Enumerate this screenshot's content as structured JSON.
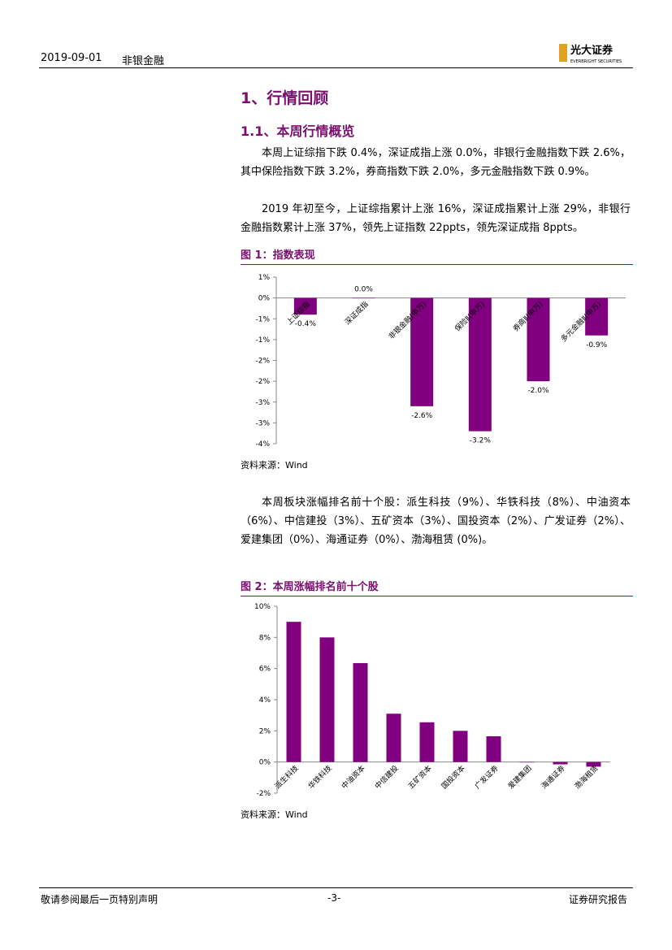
{
  "header": {
    "date": "2019-09-01",
    "sector": "非银金融",
    "logo": "光大证券",
    "logo_en": "EVERBRIGHT SECURITIES"
  },
  "heading1": "1、行情回顾",
  "heading2": "1.1、本周行情概览",
  "paragraphs": [
    "本周上证综指下跌 0.4%，深证成指上涨 0.0%，非银行金融指数下跌 2.6%，其中保险指数下跌 3.2%，券商指数下跌 2.0%，多元金融指数下跌 0.9%。",
    "2019 年初至今，上证综指累计上涨 16%，深证成指累计上涨 29%，非银行金融指数累计上涨 37%，领先上证指数 22ppts，领先深证成指 8ppts。",
    "本周板块涨幅排名前十个股：派生科技（9%）、华铁科技（8%）、中油资本（6%）、中信建投（3%）、五矿资本（3%）、国投资本（2%）、广发证券（2%）、爱建集团（0%）、海通证券（0%）、渤海租赁 (0%)。"
  ],
  "chart_data": [
    {
      "type": "bar",
      "title": "图 1：指数表现",
      "source": "资料来源：Wind",
      "color": "#800080",
      "categories": [
        "上证综指",
        "深证成指",
        "非银金融(申万)",
        "保险Ⅱ(申万)",
        "券商Ⅱ(申万)",
        "多元金融Ⅱ(申万)"
      ],
      "values": [
        -0.4,
        0.0,
        -2.6,
        -3.2,
        -2.0,
        -0.9
      ],
      "value_labels": [
        "-0.4%",
        "0.0%",
        "-2.6%",
        "-3.2%",
        "-2.0%",
        "-0.9%"
      ],
      "ylim": [
        -3.5,
        0.5
      ],
      "yticks": [
        {
          "value": 0.5,
          "label": "1%"
        },
        {
          "value": 0,
          "label": "0%"
        },
        {
          "value": -0.5,
          "label": "-1%"
        },
        {
          "value": -1.0,
          "label": "-1%"
        },
        {
          "value": -1.5,
          "label": "-2%"
        },
        {
          "value": -2.0,
          "label": "-2%"
        },
        {
          "value": -2.5,
          "label": "-3%"
        },
        {
          "value": -3.0,
          "label": "-3%"
        },
        {
          "value": -3.5,
          "label": "-4%"
        }
      ]
    },
    {
      "type": "bar",
      "title": "图 2：本周涨幅排名前十个股",
      "source": "资料来源：Wind",
      "color": "#800080",
      "categories": [
        "派生科技",
        "华铁科技",
        "中油资本",
        "中信建投",
        "五矿资本",
        "国投资本",
        "广发证券",
        "爱建集团",
        "海通证券",
        "渤海租赁"
      ],
      "values": [
        9.0,
        8.0,
        6.35,
        3.1,
        2.55,
        2.0,
        1.65,
        0.0,
        -0.15,
        -0.3
      ],
      "ylim": [
        -2,
        10
      ],
      "yticks": [
        {
          "value": 10,
          "label": "10%"
        },
        {
          "value": 8,
          "label": "8%"
        },
        {
          "value": 6,
          "label": "6%"
        },
        {
          "value": 4,
          "label": "4%"
        },
        {
          "value": 2,
          "label": "2%"
        },
        {
          "value": 0,
          "label": "0%"
        },
        {
          "value": -2,
          "label": "-2%"
        }
      ]
    }
  ],
  "footer": {
    "left": "敬请参阅最后一页特别声明",
    "center": "-3-",
    "right": "证券研究报告"
  }
}
